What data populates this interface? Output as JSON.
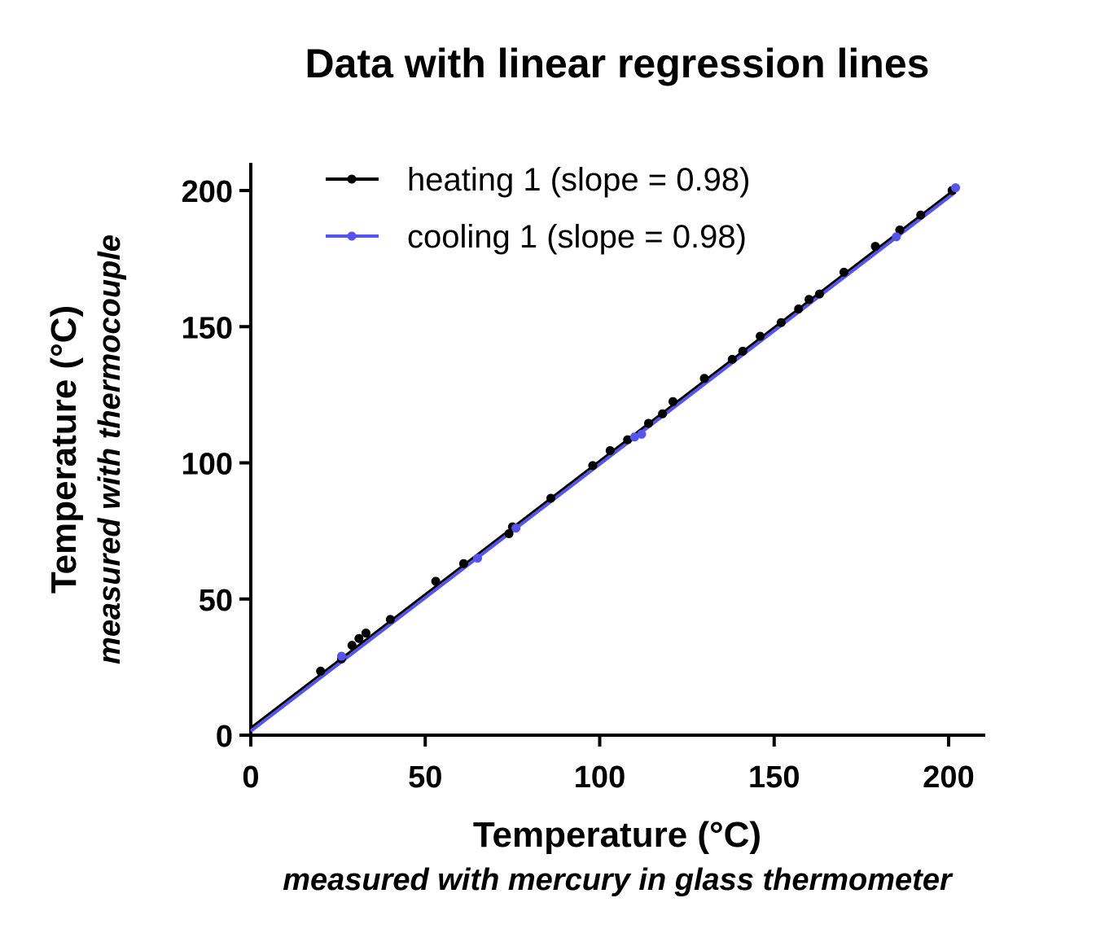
{
  "chart_data": {
    "type": "scatter",
    "title": "Data with linear regression lines",
    "xlabel": "Temperature (°C)",
    "xlabel_sub": "measured with mercury in glass thermometer",
    "ylabel": "Temperature (°C)",
    "ylabel_sub": "measured with thermocouple",
    "xlim": [
      0,
      210
    ],
    "ylim": [
      0,
      210
    ],
    "xticks": [
      0,
      50,
      100,
      150,
      200
    ],
    "yticks": [
      0,
      50,
      100,
      150,
      200
    ],
    "grid": false,
    "legend_position": "top-left",
    "series": [
      {
        "name": "heating 1 (slope = 0.98)",
        "color": "#000000",
        "fit": {
          "slope": 0.98,
          "intercept": 2.5
        },
        "points": [
          [
            20,
            23.5
          ],
          [
            26,
            28
          ],
          [
            29,
            33
          ],
          [
            31,
            35.5
          ],
          [
            33,
            37.5
          ],
          [
            40,
            42.5
          ],
          [
            53,
            56.5
          ],
          [
            61,
            63
          ],
          [
            74,
            74
          ],
          [
            75,
            76.5
          ],
          [
            86,
            87
          ],
          [
            98,
            99
          ],
          [
            103,
            104.5
          ],
          [
            108,
            108.5
          ],
          [
            114,
            114.5
          ],
          [
            118,
            118
          ],
          [
            121,
            122.5
          ],
          [
            130,
            131
          ],
          [
            138,
            138
          ],
          [
            141,
            141
          ],
          [
            146,
            146.5
          ],
          [
            152,
            151.5
          ],
          [
            157,
            156.5
          ],
          [
            160,
            160
          ],
          [
            163,
            162
          ],
          [
            170,
            170
          ],
          [
            179,
            179.5
          ],
          [
            186,
            185.5
          ],
          [
            192,
            191
          ],
          [
            201,
            200
          ]
        ]
      },
      {
        "name": "cooling 1 (slope = 0.98)",
        "color": "#5555ee",
        "fit": {
          "slope": 0.98,
          "intercept": 1.5
        },
        "points": [
          [
            26,
            29
          ],
          [
            65,
            65
          ],
          [
            76,
            76
          ],
          [
            110,
            109.5
          ],
          [
            112,
            110.5
          ],
          [
            185,
            183
          ],
          [
            202,
            201
          ]
        ]
      }
    ]
  }
}
